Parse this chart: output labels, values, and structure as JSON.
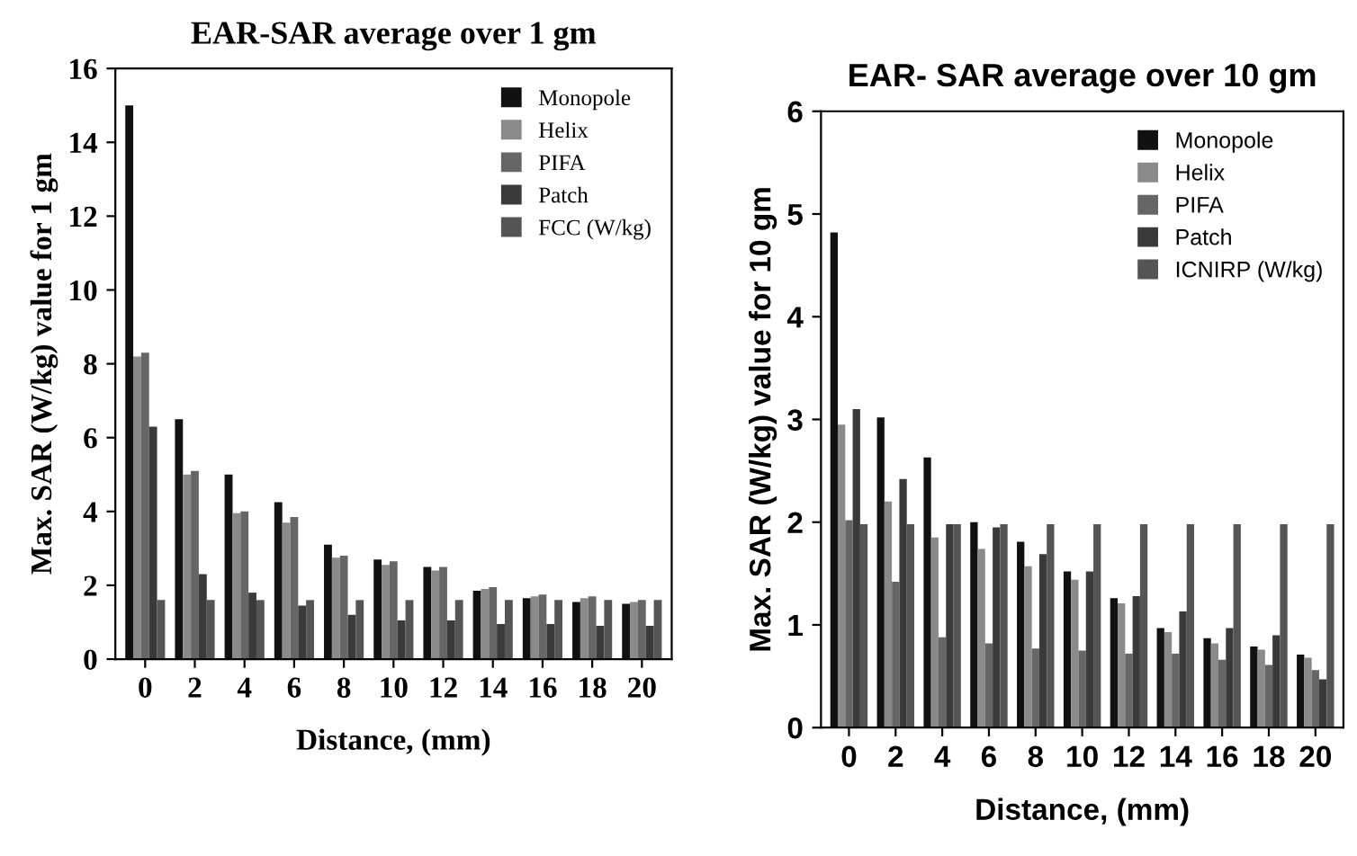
{
  "chart_data": [
    {
      "type": "bar",
      "title": "EAR-SAR average over 1 gm",
      "xlabel": "Distance, (mm)",
      "ylabel": "Max. SAR (W/kg) value for 1 gm",
      "categories": [
        "0",
        "2",
        "4",
        "6",
        "8",
        "10",
        "12",
        "14",
        "16",
        "18",
        "20"
      ],
      "ylim": [
        0,
        16
      ],
      "yticks": [
        0,
        2,
        4,
        6,
        8,
        10,
        12,
        14,
        16
      ],
      "legend": "top right",
      "grid": false,
      "series": [
        {
          "name": "Monopole",
          "color": "#111111",
          "values": [
            15,
            6.5,
            5.0,
            4.25,
            3.1,
            2.7,
            2.5,
            1.85,
            1.65,
            1.55,
            1.5
          ]
        },
        {
          "name": "Helix",
          "color": "#8a8a8a",
          "values": [
            8.2,
            5.0,
            3.95,
            3.7,
            2.75,
            2.55,
            2.4,
            1.9,
            1.7,
            1.65,
            1.55
          ]
        },
        {
          "name": "PIFA",
          "color": "#666666",
          "values": [
            8.3,
            5.1,
            4.0,
            3.85,
            2.8,
            2.65,
            2.5,
            1.95,
            1.75,
            1.7,
            1.6
          ]
        },
        {
          "name": "Patch",
          "color": "#3a3a3a",
          "values": [
            6.3,
            2.3,
            1.8,
            1.45,
            1.2,
            1.05,
            1.05,
            0.95,
            0.95,
            0.9,
            0.9
          ]
        },
        {
          "name": "FCC (W/kg)",
          "color": "#555555",
          "values": [
            1.6,
            1.6,
            1.6,
            1.6,
            1.6,
            1.6,
            1.6,
            1.6,
            1.6,
            1.6,
            1.6
          ]
        }
      ]
    },
    {
      "type": "bar",
      "title": "EAR- SAR average over 10 gm",
      "xlabel": "Distance, (mm)",
      "ylabel": "Max. SAR (W/kg) value for 10 gm",
      "categories": [
        "0",
        "2",
        "4",
        "6",
        "8",
        "10",
        "12",
        "14",
        "16",
        "18",
        "20"
      ],
      "ylim": [
        0,
        6
      ],
      "yticks": [
        0,
        1,
        2,
        3,
        4,
        5,
        6
      ],
      "legend": "top right",
      "grid": false,
      "series": [
        {
          "name": "Monopole",
          "color": "#111111",
          "values": [
            4.82,
            3.02,
            2.63,
            2.0,
            1.81,
            1.52,
            1.26,
            0.97,
            0.87,
            0.79,
            0.71
          ]
        },
        {
          "name": "Helix",
          "color": "#8a8a8a",
          "values": [
            2.95,
            2.2,
            1.85,
            1.74,
            1.57,
            1.44,
            1.21,
            0.93,
            0.82,
            0.76,
            0.68
          ]
        },
        {
          "name": "PIFA",
          "color": "#666666",
          "values": [
            2.02,
            1.42,
            0.88,
            0.82,
            0.77,
            0.75,
            0.72,
            0.72,
            0.66,
            0.61,
            0.56
          ]
        },
        {
          "name": "Patch",
          "color": "#3a3a3a",
          "values": [
            3.1,
            2.42,
            1.98,
            1.95,
            1.69,
            1.52,
            1.28,
            1.13,
            0.97,
            0.9,
            0.47
          ]
        },
        {
          "name": "ICNIRP (W/kg)",
          "color": "#555555",
          "values": [
            1.98,
            1.98,
            1.98,
            1.98,
            1.98,
            1.98,
            1.98,
            1.98,
            1.98,
            1.98,
            1.98
          ]
        }
      ]
    }
  ]
}
